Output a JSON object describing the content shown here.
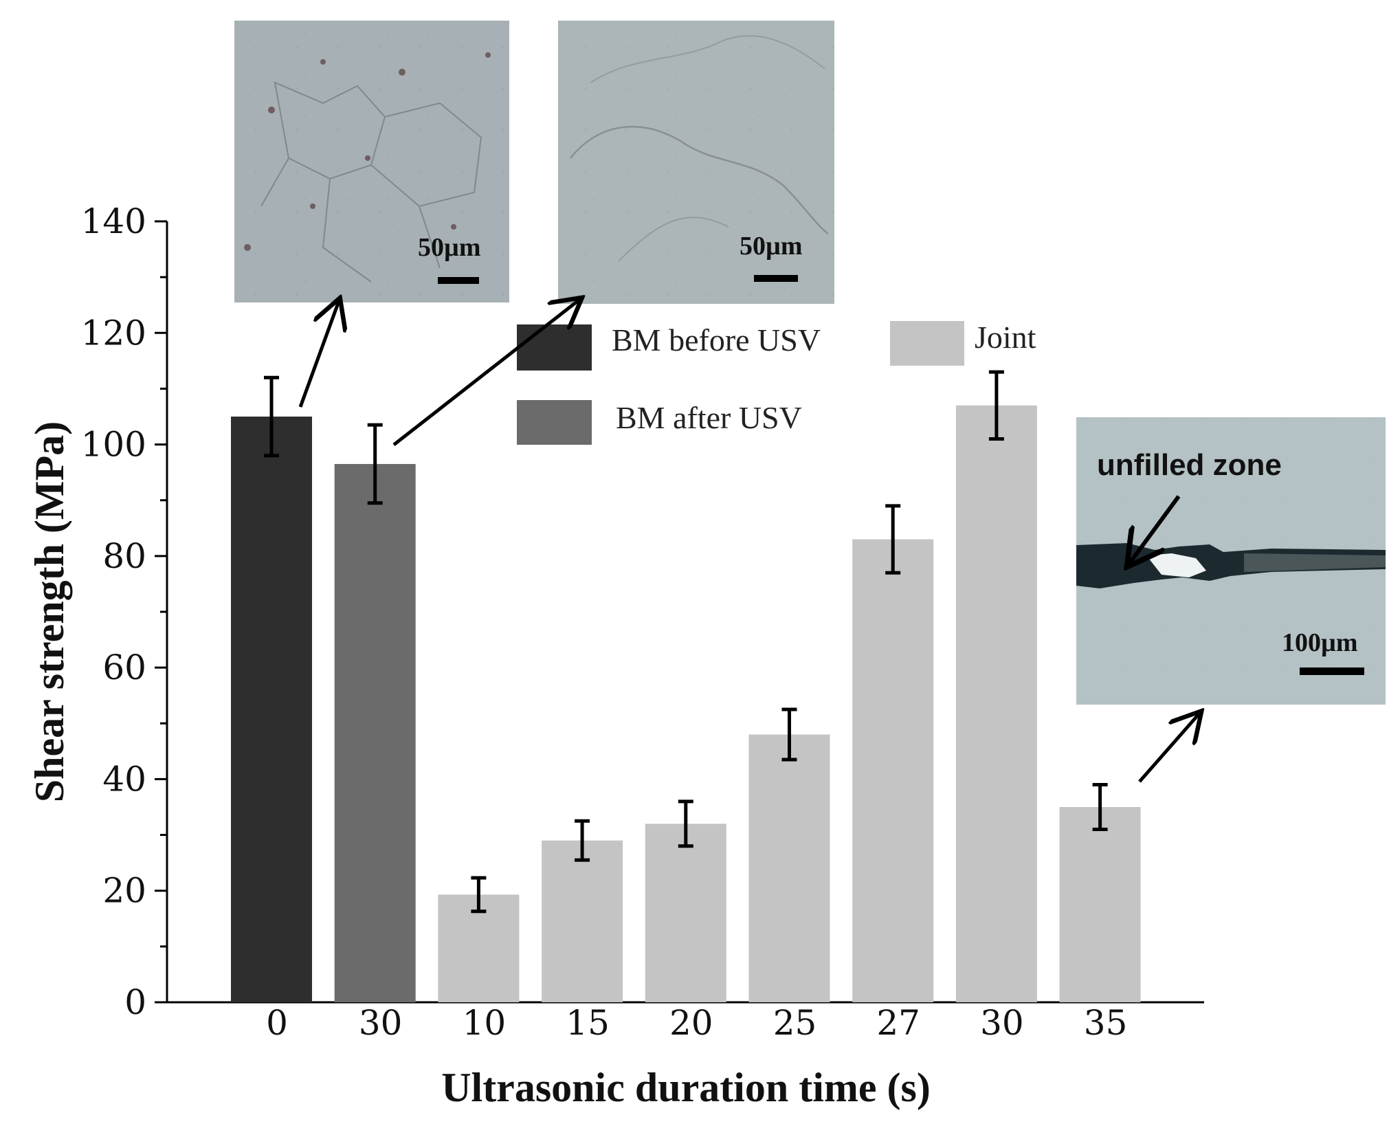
{
  "chart_data": {
    "type": "bar",
    "title": "",
    "xlabel": "Ultrasonic duration time (s)",
    "ylabel": "Shear strength (MPa)",
    "ylim": [
      0,
      140
    ],
    "yticks": [
      0,
      20,
      40,
      60,
      80,
      100,
      120,
      140
    ],
    "grid": false,
    "legend_position": "top-center",
    "categories": [
      "0",
      "30",
      "10",
      "15",
      "20",
      "25",
      "27",
      "30",
      "35"
    ],
    "bars": [
      {
        "label": "0",
        "value": 105,
        "error": 7,
        "series": "BM before USV"
      },
      {
        "label": "30",
        "value": 96.5,
        "error": 7,
        "series": "BM after USV"
      },
      {
        "label": "10",
        "value": 19.3,
        "error": 3,
        "series": "Joint"
      },
      {
        "label": "15",
        "value": 29,
        "error": 3.5,
        "series": "Joint"
      },
      {
        "label": "20",
        "value": 32,
        "error": 4,
        "series": "Joint"
      },
      {
        "label": "25",
        "value": 48,
        "error": 4.5,
        "series": "Joint"
      },
      {
        "label": "27",
        "value": 83,
        "error": 6,
        "series": "Joint"
      },
      {
        "label": "30",
        "value": 107,
        "error": 6,
        "series": "Joint"
      },
      {
        "label": "35",
        "value": 35,
        "error": 4,
        "series": "Joint"
      }
    ],
    "series": [
      {
        "name": "BM before USV",
        "color": "#2e2e2e"
      },
      {
        "name": "BM after USV",
        "color": "#6b6b6b"
      },
      {
        "name": "Joint",
        "color": "#c4c4c4"
      }
    ],
    "insets": [
      {
        "name": "micrograph-bm-before",
        "scale_label": "50µm",
        "points_to": "0"
      },
      {
        "name": "micrograph-bm-after",
        "scale_label": "50µm",
        "points_to": "30"
      },
      {
        "name": "micrograph-joint-35s",
        "scale_label": "100µm",
        "annotation": "unfilled zone",
        "points_to": "35"
      }
    ]
  }
}
